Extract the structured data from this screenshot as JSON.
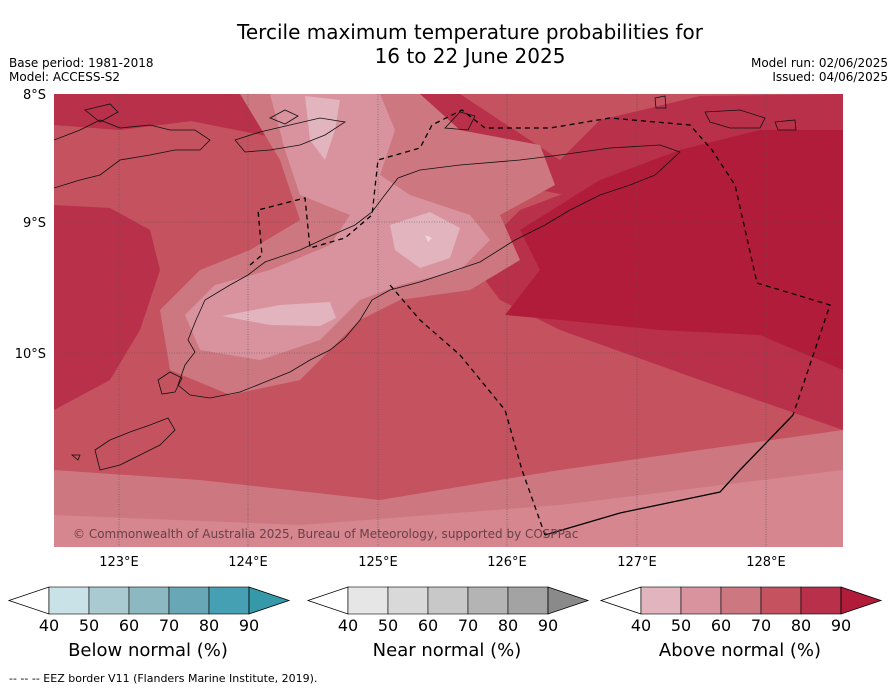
{
  "title": {
    "line1": "Tercile maximum temperature probabilities for",
    "line2": "16 to 22 June 2025"
  },
  "meta_left": {
    "base_period": "Base period: 1981-2018",
    "model": "Model: ACCESS-S2"
  },
  "meta_right": {
    "model_run": "Model run: 02/06/2025",
    "issued": "Issued: 04/06/2025"
  },
  "map": {
    "lat_labels": [
      "8°S",
      "9°S",
      "10°S"
    ],
    "lon_labels": [
      "123°E",
      "124°E",
      "125°E",
      "126°E",
      "127°E",
      "128°E"
    ],
    "credit": "© Commonwealth of Australia 2025, Bureau of Meteorology, supported by COSPPac"
  },
  "legends": [
    {
      "name": "Below normal (%)",
      "ticks": [
        "40",
        "50",
        "60",
        "70",
        "80",
        "90"
      ],
      "colors": [
        "#ffffff",
        "#c9e2e8",
        "#a9cad0",
        "#8cb8c2",
        "#68a7b5",
        "#44a0b2",
        "#3599aa"
      ]
    },
    {
      "name": "Near normal (%)",
      "ticks": [
        "40",
        "50",
        "60",
        "70",
        "80",
        "90"
      ],
      "colors": [
        "#ffffff",
        "#e6e6e6",
        "#d9d9d9",
        "#c8c8c8",
        "#b4b4b4",
        "#a3a3a3",
        "#8a8a8a"
      ]
    },
    {
      "name": "Above normal (%)",
      "ticks": [
        "40",
        "50",
        "60",
        "70",
        "80",
        "90"
      ],
      "colors": [
        "#ffffff",
        "#e2b4bd",
        "#d9939f",
        "#cd7780",
        "#c4525f",
        "#b8304a",
        "#b01c3a"
      ]
    }
  ],
  "footer": "--  --  -- EEZ border V11 (Flanders Marine Institute, 2019)."
}
